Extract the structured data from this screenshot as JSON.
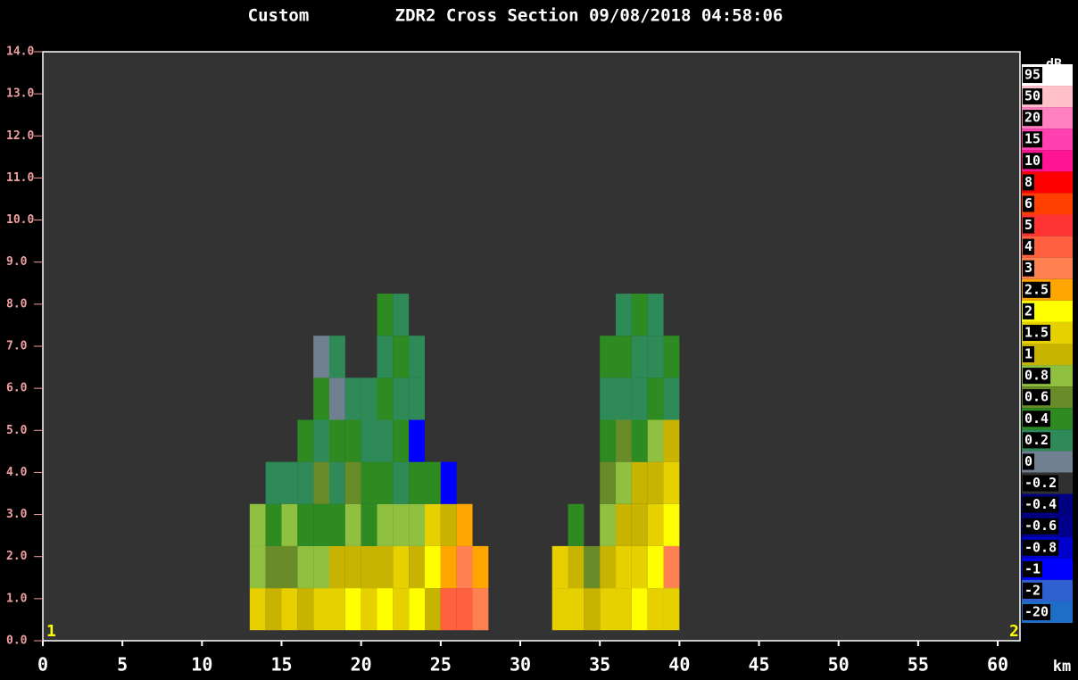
{
  "chart_data": {
    "type": "heatmap",
    "title_prefix": "Custom",
    "title": "ZDR2 Cross Section 09/08/2018 04:58:06",
    "x_unit": "km",
    "start_marker": "1",
    "end_marker": "2",
    "xlim": [
      0,
      61.4
    ],
    "ylim": [
      0,
      14
    ],
    "xticks": [
      0,
      5,
      10,
      15,
      20,
      25,
      30,
      35,
      40,
      45,
      50,
      55,
      60
    ],
    "yticks": [
      {
        "value": 0,
        "label": "0.0"
      },
      {
        "value": 1,
        "label": "1.0"
      },
      {
        "value": 2,
        "label": "2.0"
      },
      {
        "value": 3,
        "label": "3.0"
      },
      {
        "value": 4,
        "label": "4.0"
      },
      {
        "value": 5,
        "label": "5.0"
      },
      {
        "value": 6,
        "label": "6.0"
      },
      {
        "value": 7,
        "label": "7.0"
      },
      {
        "value": 8,
        "label": "8.0"
      },
      {
        "value": 9,
        "label": "9.0"
      },
      {
        "value": 10,
        "label": "10.0"
      },
      {
        "value": 11,
        "label": "11.0"
      },
      {
        "value": 12,
        "label": "12.0"
      },
      {
        "value": 13,
        "label": "13.0"
      },
      {
        "value": 14,
        "label": "14.0"
      }
    ],
    "x": [
      13,
      14,
      15,
      16,
      17,
      18,
      19,
      20,
      21,
      22,
      23,
      24,
      25,
      26,
      27,
      28,
      29,
      30,
      31,
      32,
      33,
      34,
      35,
      36,
      37,
      38,
      39,
      40
    ],
    "y": [
      0.25,
      1.25,
      2.25,
      3.25,
      4.25,
      5.25,
      6.25,
      7.25,
      8.25,
      9.25
    ],
    "values": [
      [
        1.5,
        0.8,
        0.8,
        null,
        null,
        null,
        null,
        null,
        null
      ],
      [
        1,
        0.6,
        0.4,
        0.2,
        null,
        null,
        null,
        null,
        null
      ],
      [
        1.5,
        0.6,
        0.8,
        0.2,
        null,
        null,
        null,
        null,
        null
      ],
      [
        1,
        0.8,
        0.4,
        0.2,
        0.4,
        null,
        null,
        null,
        null
      ],
      [
        1.5,
        0.8,
        0.4,
        0.6,
        0.2,
        0.4,
        0,
        null,
        null
      ],
      [
        1.5,
        1,
        0.4,
        0.2,
        0.4,
        0,
        0.2,
        null,
        null
      ],
      [
        2,
        1,
        0.8,
        0.6,
        0.4,
        0.2,
        null,
        null,
        null
      ],
      [
        1.5,
        1,
        0.4,
        0.4,
        0.2,
        0.2,
        null,
        null,
        null
      ],
      [
        2,
        1,
        0.8,
        0.4,
        0.2,
        0.4,
        0.2,
        0.4,
        null
      ],
      [
        1.5,
        1.5,
        0.8,
        0.2,
        0.4,
        0.2,
        0.4,
        0.2,
        null
      ],
      [
        2,
        1,
        0.8,
        0.4,
        -1,
        0.2,
        0.2,
        null,
        null
      ],
      [
        1,
        2,
        1.5,
        0.4,
        null,
        null,
        null,
        null,
        null
      ],
      [
        4,
        2.5,
        1,
        -1,
        null,
        null,
        null,
        null,
        null
      ],
      [
        4,
        3,
        2.5,
        null,
        null,
        null,
        null,
        null,
        null
      ],
      [
        3,
        2.5,
        null,
        null,
        null,
        null,
        null,
        null,
        null
      ],
      [
        null,
        null,
        null,
        null,
        null,
        null,
        null,
        null,
        null
      ],
      [
        null,
        null,
        null,
        null,
        null,
        null,
        null,
        null,
        null
      ],
      [
        null,
        null,
        null,
        null,
        null,
        null,
        null,
        null,
        null
      ],
      [
        null,
        null,
        null,
        null,
        null,
        null,
        null,
        null,
        null
      ],
      [
        1.5,
        1.5,
        null,
        null,
        null,
        null,
        null,
        null,
        null
      ],
      [
        1.5,
        1,
        0.4,
        null,
        null,
        null,
        null,
        null,
        null
      ],
      [
        1,
        0.6,
        null,
        null,
        null,
        null,
        null,
        null,
        null
      ],
      [
        1.5,
        1,
        0.8,
        0.6,
        0.4,
        0.2,
        0.4,
        null,
        null
      ],
      [
        1.5,
        1.5,
        1,
        0.8,
        0.6,
        0.2,
        0.4,
        0.2,
        null
      ],
      [
        2,
        1.5,
        1,
        1,
        0.4,
        0.2,
        0.2,
        0.4,
        null
      ],
      [
        1.5,
        2,
        1.5,
        1,
        0.8,
        0.4,
        0.2,
        0.2,
        null
      ],
      [
        1.5,
        3,
        2,
        1.5,
        1,
        0.2,
        0.4,
        null,
        null
      ]
    ],
    "scale_unit": "dB",
    "levels": [
      95,
      50,
      20,
      15,
      10,
      8,
      6,
      5,
      4,
      3,
      2.5,
      2,
      1.5,
      1,
      0.8,
      0.6,
      0.4,
      0.2,
      0,
      -0.2,
      -0.4,
      -0.6,
      -0.8,
      -1,
      -2,
      -20
    ],
    "level_colors": [
      "#ffffff",
      "#ffc0cb",
      "#ff80c0",
      "#ff40b0",
      "#ff1493",
      "#ff0000",
      "#ff4000",
      "#ff3333",
      "#ff6040",
      "#ff8050",
      "#ffa500",
      "#ffff00",
      "#e6d000",
      "#c8b400",
      "#90c040",
      "#6a8c28",
      "#2e8b22",
      "#2e8b57",
      "#708090",
      "#303030",
      "#000080",
      "#00008b",
      "#0000cd",
      "#0000ff",
      "#3060d0",
      "#1e6ec8"
    ]
  }
}
